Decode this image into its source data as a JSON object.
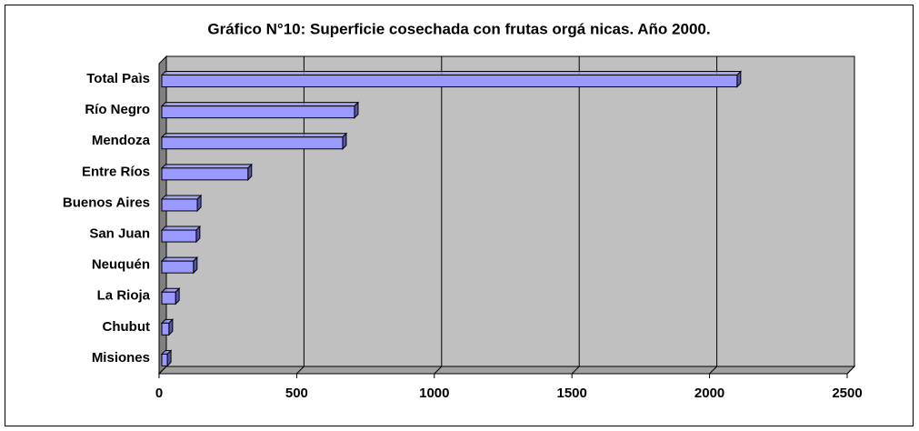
{
  "chart_data": {
    "type": "bar3d_horizontal",
    "title": "Gráfico N°10: Superficie cosechada con frutas orgá nicas. Año 2000.",
    "categories": [
      "Total Paìs",
      "Río Negro",
      "Mendoza",
      "Entre Ríos",
      "Buenos Aires",
      "San Juan",
      "Neuquén",
      "La Rioja",
      "Chubut",
      "Misiones"
    ],
    "values": [
      2090,
      700,
      657,
      313,
      129,
      125,
      115,
      50,
      26,
      20
    ],
    "color": "#9999ff",
    "xlim": [
      0,
      2500
    ],
    "xticks": [
      0,
      500,
      1000,
      1500,
      2000,
      2500
    ],
    "grid": true
  }
}
